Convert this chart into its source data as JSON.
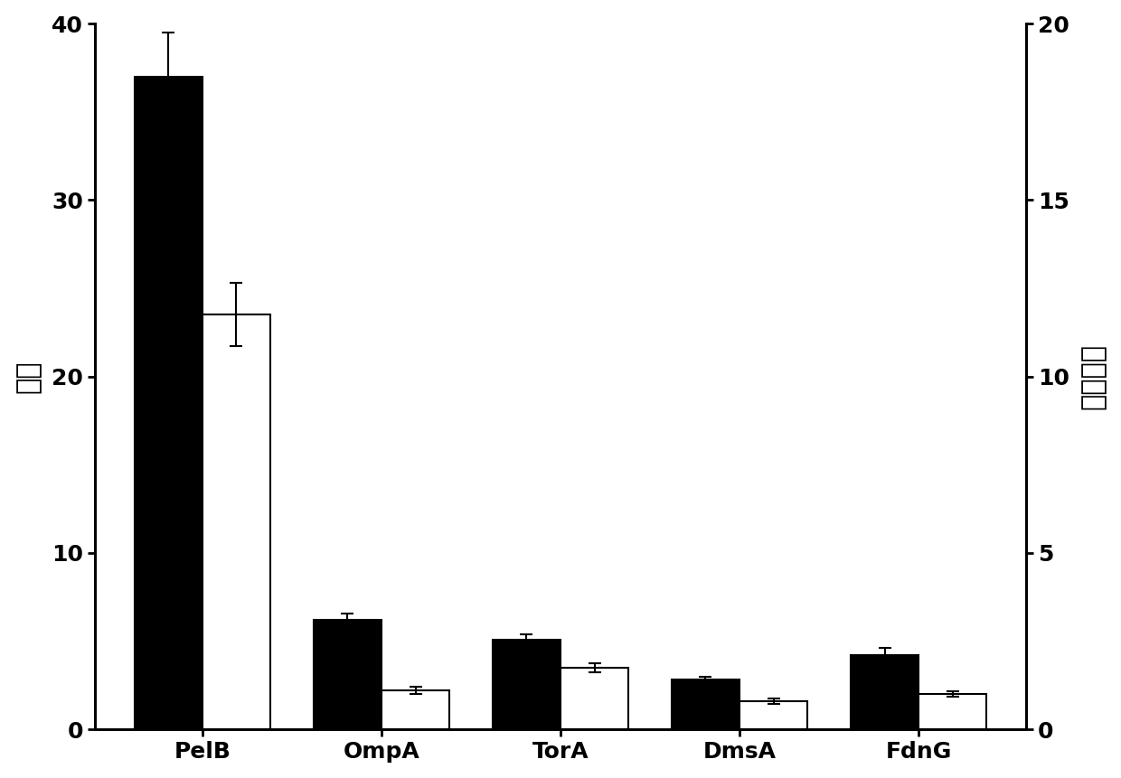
{
  "categories": [
    "PelB",
    "OmpA",
    "TorA",
    "DmsA",
    "FdnG"
  ],
  "black_values": [
    37.0,
    6.2,
    5.1,
    2.8,
    4.2
  ],
  "white_values": [
    11.75,
    1.1,
    1.75,
    0.8,
    1.0
  ],
  "black_errors": [
    2.5,
    0.35,
    0.3,
    0.2,
    0.4
  ],
  "white_errors": [
    0.9,
    0.1,
    0.125,
    0.075,
    0.075
  ],
  "ylabel_left": "酶活",
  "ylabel_right": "蛋白浓度",
  "ylim_left": [
    0,
    40
  ],
  "ylim_right": [
    0,
    20
  ],
  "yticks_left": [
    0,
    10,
    20,
    30,
    40
  ],
  "yticks_right": [
    0,
    5,
    10,
    15,
    20
  ],
  "bar_width": 0.38,
  "black_color": "#000000",
  "white_color": "#ffffff",
  "edge_color": "#000000",
  "background_color": "#ffffff",
  "font_size_ticks": 18,
  "font_size_labels": 22,
  "font_size_xticks": 18
}
